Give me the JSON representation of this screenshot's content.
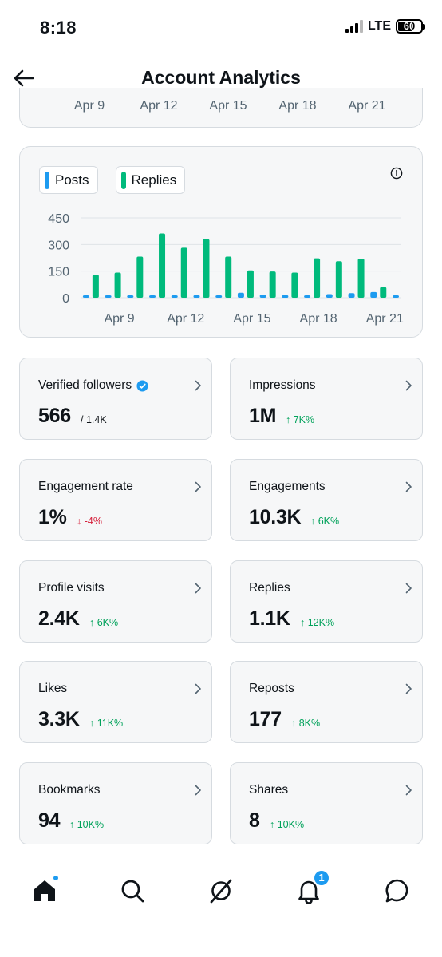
{
  "status_bar": {
    "time": "8:18",
    "network": "LTE",
    "battery": "60"
  },
  "header": {
    "title": "Account Analytics"
  },
  "top_chart_axis": [
    "Apr 9",
    "Apr 12",
    "Apr 15",
    "Apr 18",
    "Apr 21"
  ],
  "chart_data": {
    "type": "bar",
    "legend": [
      "Posts",
      "Replies"
    ],
    "x": [
      "Apr 8",
      "Apr 9",
      "Apr 10",
      "Apr 11",
      "Apr 12",
      "Apr 13",
      "Apr 14",
      "Apr 15",
      "Apr 16",
      "Apr 17",
      "Apr 18",
      "Apr 19",
      "Apr 20",
      "Apr 21",
      "Apr 22"
    ],
    "xtick_labels": [
      "Apr 9",
      "Apr 12",
      "Apr 15",
      "Apr 18",
      "Apr 21"
    ],
    "yticks": [
      450,
      300,
      150,
      0
    ],
    "ylim": [
      0,
      450
    ],
    "grid": true,
    "series": [
      {
        "name": "Posts",
        "color": "#1d9bf0",
        "values": [
          5,
          3,
          4,
          8,
          12,
          14,
          10,
          28,
          18,
          14,
          12,
          20,
          26,
          32,
          10
        ]
      },
      {
        "name": "Replies",
        "color": "#00ba7c",
        "values": [
          130,
          142,
          232,
          362,
          282,
          330,
          232,
          154,
          148,
          142,
          222,
          206,
          220,
          60,
          0
        ]
      }
    ]
  },
  "metrics": [
    {
      "label": "Verified followers",
      "value": "566",
      "sub": "/ 1.4K",
      "trend": "neutral",
      "verified": true
    },
    {
      "label": "Impressions",
      "value": "1M",
      "sub": "↑ 7K%",
      "trend": "up"
    },
    {
      "label": "Engagement rate",
      "value": "1%",
      "sub": "↓ -4%",
      "trend": "down"
    },
    {
      "label": "Engagements",
      "value": "10.3K",
      "sub": "↑ 6K%",
      "trend": "up"
    },
    {
      "label": "Profile visits",
      "value": "2.4K",
      "sub": "↑ 6K%",
      "trend": "up"
    },
    {
      "label": "Replies",
      "value": "1.1K",
      "sub": "↑ 12K%",
      "trend": "up"
    },
    {
      "label": "Likes",
      "value": "3.3K",
      "sub": "↑ 11K%",
      "trend": "up"
    },
    {
      "label": "Reposts",
      "value": "177",
      "sub": "↑ 8K%",
      "trend": "up"
    },
    {
      "label": "Bookmarks",
      "value": "94",
      "sub": "↑ 10K%",
      "trend": "up"
    },
    {
      "label": "Shares",
      "value": "8",
      "sub": "↑ 10K%",
      "trend": "up"
    }
  ],
  "bottom_nav": {
    "items": [
      "home-icon",
      "search-icon",
      "grok-icon",
      "notifications-icon",
      "messages-icon"
    ],
    "notifications_badge": "1"
  },
  "colors": {
    "posts": "#1d9bf0",
    "replies": "#00ba7c",
    "up": "#00a25a",
    "down": "#d5213b"
  }
}
